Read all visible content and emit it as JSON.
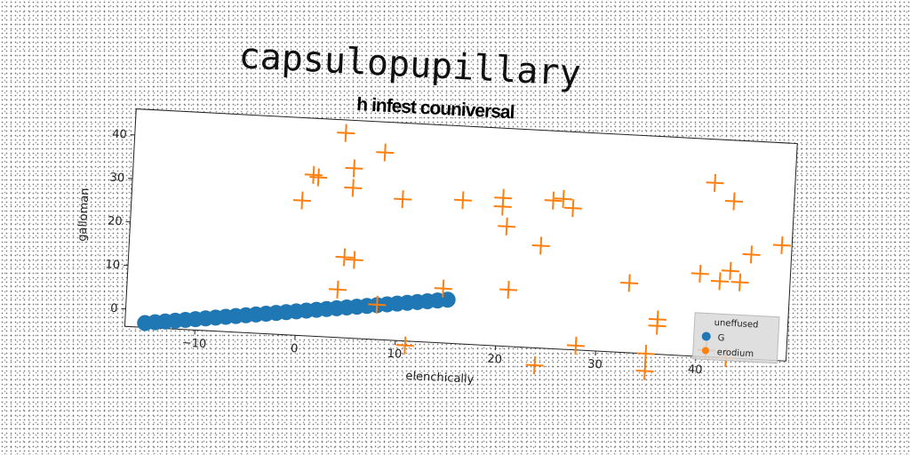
{
  "title": "capsulopupillary",
  "chart_data": {
    "type": "scatter",
    "title": "h infest couniversal",
    "xlabel": "elenchically",
    "ylabel": "galloman",
    "xlim": [
      -17,
      49
    ],
    "ylim": [
      -4,
      46
    ],
    "xticks": [
      -10,
      0,
      10,
      20,
      30,
      40
    ],
    "yticks": [
      0,
      10,
      20,
      30,
      40
    ],
    "grid": false,
    "legend": {
      "title": "uneffused",
      "position": "lower right"
    },
    "series": [
      {
        "name": "G",
        "marker": "circle",
        "color": "#1f77b4",
        "x": [
          -15,
          -14,
          -13,
          -12,
          -11,
          -10,
          -9,
          -8,
          -7,
          -6,
          -5,
          -4,
          -3,
          -2,
          -1,
          0,
          1,
          2,
          3,
          4,
          5,
          6,
          7,
          8,
          9,
          10,
          11,
          12,
          13,
          14,
          15
        ],
        "y": [
          -3.0,
          -2.7,
          -2.4,
          -2.1,
          -1.8,
          -1.5,
          -1.2,
          -0.9,
          -0.6,
          -0.3,
          0.0,
          0.3,
          0.6,
          0.9,
          1.2,
          1.5,
          1.8,
          2.1,
          2.4,
          2.7,
          3.0,
          3.3,
          3.6,
          3.9,
          4.2,
          4.5,
          4.8,
          5.1,
          5.4,
          5.7,
          6.0
        ]
      },
      {
        "name": "erodium",
        "marker": "plus",
        "color": "#ff7f0e",
        "x": [
          4,
          8,
          1,
          1.5,
          5,
          5,
          0,
          10,
          16,
          4.5,
          5.5,
          4,
          8,
          11,
          14.5,
          20.5,
          24,
          26,
          25,
          20,
          20,
          21,
          24,
          28,
          27,
          33,
          36,
          36,
          35,
          35,
          41,
          43,
          48,
          45,
          43,
          42,
          44,
          40,
          41,
          43
        ],
        "y": [
          43,
          39,
          33,
          32.5,
          35,
          30.5,
          27,
          28.5,
          29,
          14.5,
          14,
          7,
          4,
          -5,
          8.5,
          23.5,
          19.5,
          30.5,
          30,
          30,
          28,
          9,
          -8,
          -3,
          28.5,
          12,
          4,
          2.5,
          -4,
          -8,
          36,
          32,
          22.5,
          20,
          16,
          13.5,
          13.5,
          15,
          -2.5,
          -4
        ]
      }
    ]
  }
}
